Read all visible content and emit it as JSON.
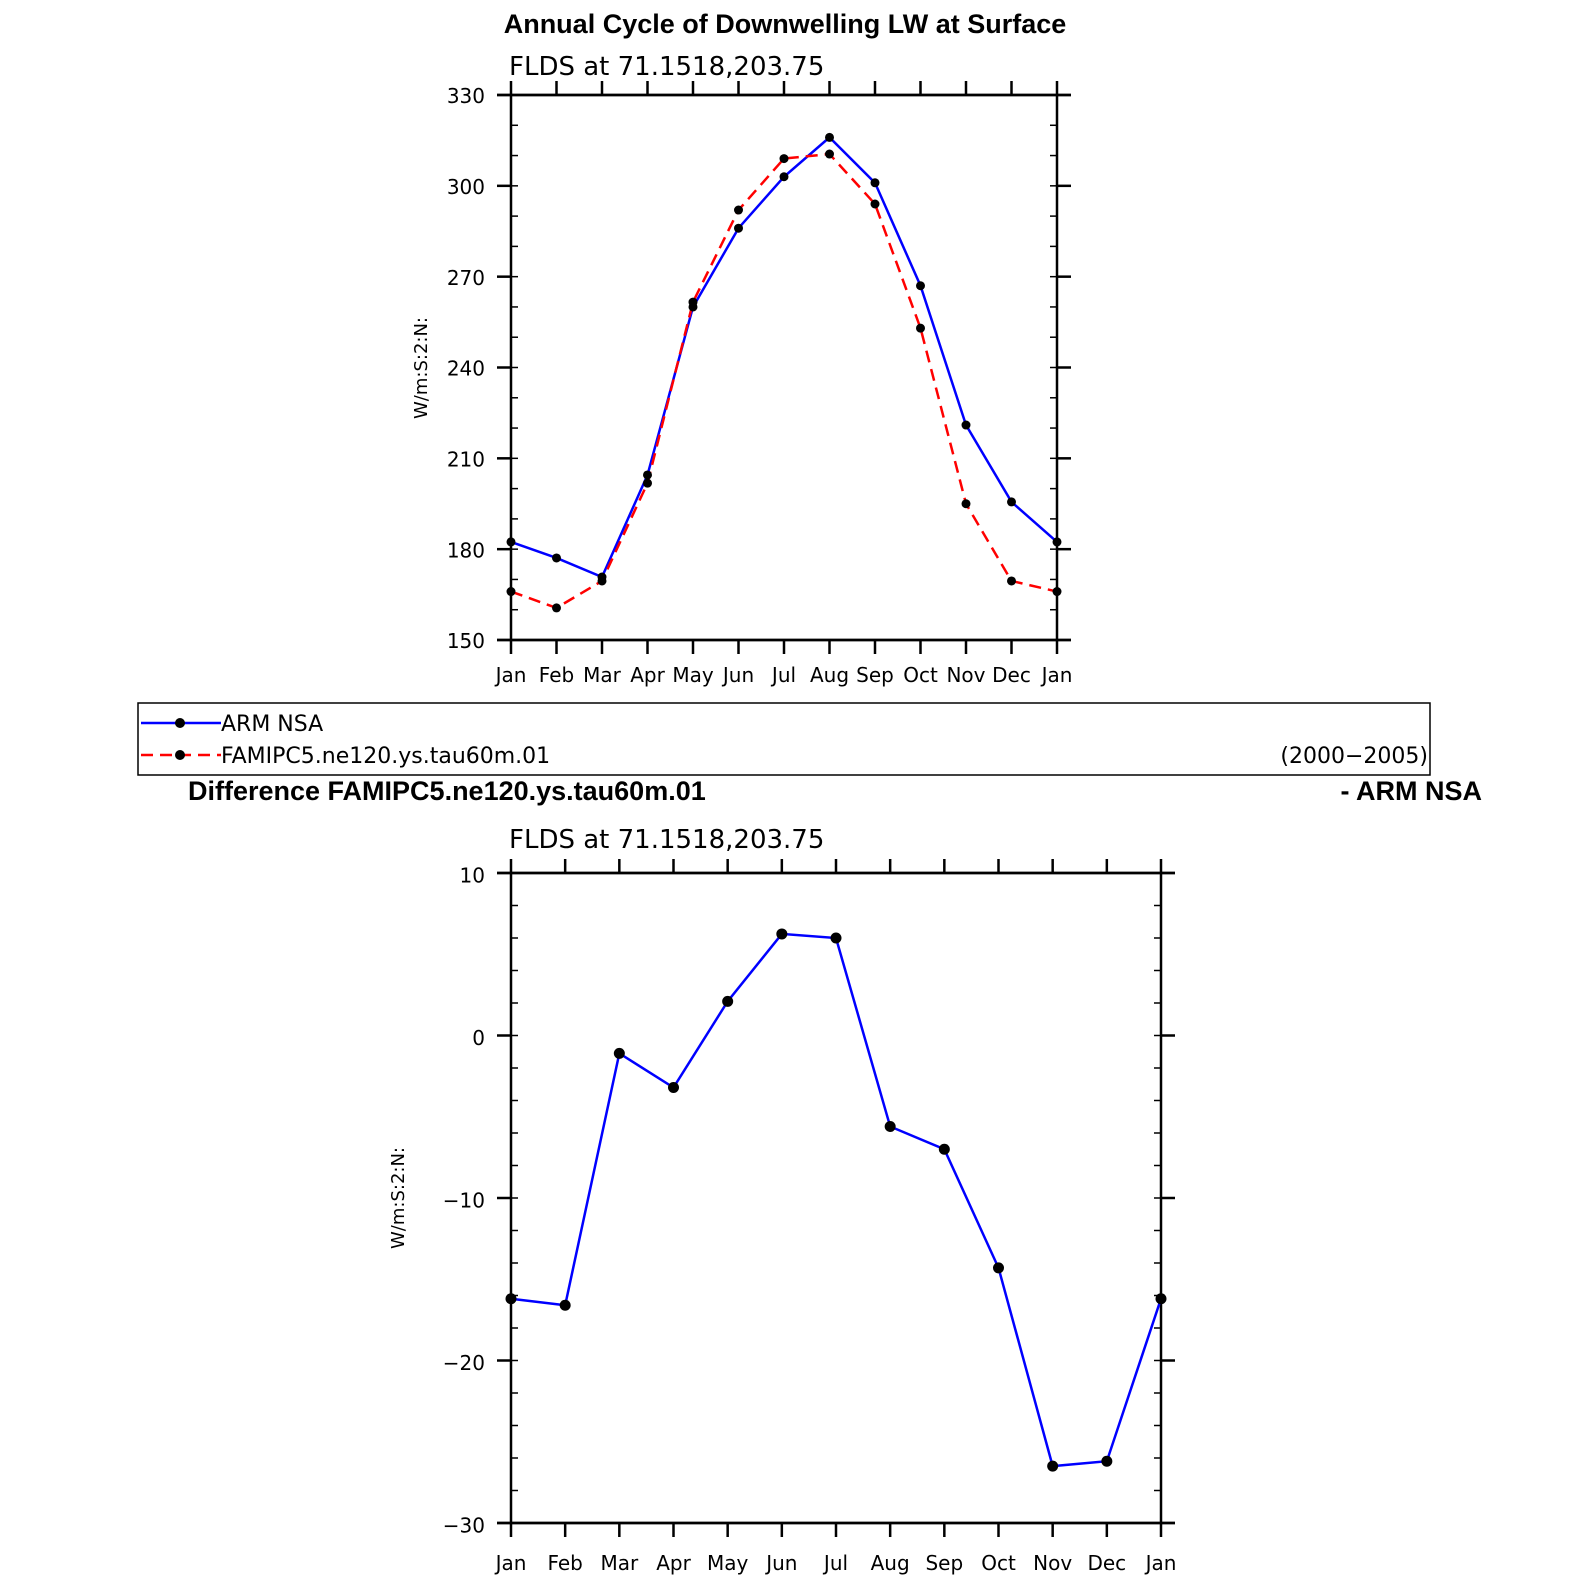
{
  "chart_data": [
    {
      "type": "line",
      "title": "Annual Cycle of Downwelling LW at Surface",
      "subtitle": "FLDS  at  71.1518,203.75",
      "ylabel": "W/m:S:2:N:",
      "xlabel": "",
      "categories": [
        "Jan",
        "Feb",
        "Mar",
        "Apr",
        "May",
        "Jun",
        "Jul",
        "Aug",
        "Sep",
        "Oct",
        "Nov",
        "Dec",
        "Jan"
      ],
      "ylim": [
        150,
        330
      ],
      "yticks": [
        150,
        180,
        210,
        240,
        270,
        300,
        330
      ],
      "series": [
        {
          "name": "ARM  NSA",
          "color": "#0000ff",
          "dash": false,
          "values": [
            182.4,
            177.1,
            170.8,
            204.5,
            260,
            286,
            303,
            316,
            301,
            267,
            221,
            195.6,
            182.4
          ]
        },
        {
          "name": "FAMIPC5.ne120.ys.tau60m.01",
          "color": "#ff0000",
          "dash": true,
          "values": [
            166,
            160.6,
            169.5,
            201.8,
            261.6,
            292,
            309,
            310.5,
            294,
            253,
            195,
            169.5,
            166
          ]
        }
      ],
      "legend": {
        "position": "bottom",
        "period": "(2000−2005)"
      }
    },
    {
      "type": "line",
      "title_left": "Difference FAMIPC5.ne120.ys.tau60m.01",
      "title_right": "- ARM NSA",
      "subtitle": "FLDS  at  71.1518,203.75",
      "ylabel": "W/m:S:2:N:",
      "xlabel": "",
      "categories": [
        "Jan",
        "Feb",
        "Mar",
        "Apr",
        "May",
        "Jun",
        "Jul",
        "Aug",
        "Sep",
        "Oct",
        "Nov",
        "Dec",
        "Jan"
      ],
      "ylim": [
        -30,
        10
      ],
      "yticks": [
        -30,
        -20,
        -10,
        0,
        10
      ],
      "ytick_labels": [
        "−30",
        "−20",
        "−10",
        "0",
        "10"
      ],
      "series": [
        {
          "name": "Difference",
          "color": "#0000ff",
          "dash": false,
          "values": [
            -16.2,
            -16.6,
            -1.1,
            -3.2,
            2.1,
            6.25,
            6.0,
            -5.6,
            -7.0,
            -14.3,
            -26.5,
            -26.2,
            -16.2
          ]
        }
      ]
    }
  ]
}
